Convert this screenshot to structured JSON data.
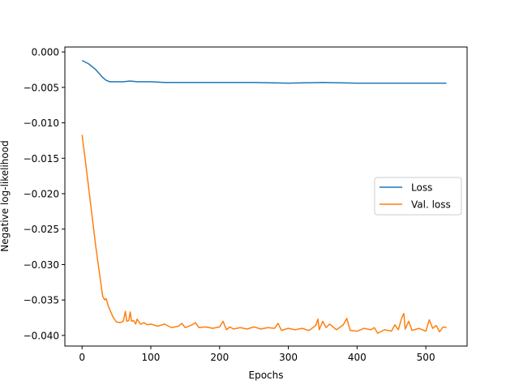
{
  "chart_data": {
    "type": "line",
    "xlabel": "Epochs",
    "ylabel": "Negative log-likelihood",
    "xlim": [
      -25,
      560
    ],
    "ylim": [
      -0.0415,
      0.0007
    ],
    "xticks": [
      0,
      100,
      200,
      300,
      400,
      500
    ],
    "xtick_labels": [
      "0",
      "100",
      "200",
      "300",
      "400",
      "500"
    ],
    "yticks": [
      0.0,
      -0.005,
      -0.01,
      -0.015,
      -0.02,
      -0.025,
      -0.03,
      -0.035,
      -0.04
    ],
    "ytick_labels": [
      "0.000",
      "−0.005",
      "−0.010",
      "−0.015",
      "−0.020",
      "−0.025",
      "−0.030",
      "−0.035",
      "−0.040"
    ],
    "grid": false,
    "legend_position": "center-right",
    "series": [
      {
        "name": "Loss",
        "color": "#1f77b4",
        "x": [
          0,
          10,
          20,
          30,
          35,
          40,
          50,
          60,
          70,
          80,
          100,
          120,
          150,
          180,
          200,
          250,
          300,
          350,
          400,
          450,
          500,
          530
        ],
        "y": [
          -0.0012,
          -0.0017,
          -0.0025,
          -0.0036,
          -0.004,
          -0.0042,
          -0.0042,
          -0.0042,
          -0.0041,
          -0.0042,
          -0.0042,
          -0.0043,
          -0.0043,
          -0.0043,
          -0.0043,
          -0.0043,
          -0.0044,
          -0.0043,
          -0.0044,
          -0.0044,
          -0.0044,
          -0.0044
        ]
      },
      {
        "name": "Val. loss",
        "color": "#ff7f0e",
        "x": [
          0,
          5,
          10,
          15,
          20,
          25,
          30,
          33,
          35,
          38,
          40,
          45,
          50,
          55,
          60,
          63,
          65,
          68,
          70,
          72,
          75,
          78,
          80,
          85,
          90,
          95,
          100,
          110,
          120,
          130,
          140,
          145,
          150,
          160,
          165,
          170,
          180,
          190,
          200,
          205,
          210,
          215,
          220,
          230,
          240,
          250,
          260,
          270,
          280,
          285,
          290,
          300,
          310,
          320,
          330,
          340,
          343,
          345,
          350,
          355,
          360,
          370,
          380,
          385,
          390,
          400,
          410,
          420,
          425,
          430,
          440,
          450,
          455,
          460,
          465,
          468,
          470,
          475,
          480,
          490,
          500,
          505,
          510,
          515,
          520,
          525,
          530
        ],
        "y": [
          -0.0117,
          -0.0155,
          -0.0195,
          -0.0235,
          -0.0275,
          -0.031,
          -0.0345,
          -0.035,
          -0.0348,
          -0.0358,
          -0.0363,
          -0.0374,
          -0.0381,
          -0.0382,
          -0.038,
          -0.0366,
          -0.038,
          -0.0379,
          -0.0367,
          -0.038,
          -0.0379,
          -0.0384,
          -0.0377,
          -0.0384,
          -0.0382,
          -0.0385,
          -0.0384,
          -0.0387,
          -0.0384,
          -0.0389,
          -0.0387,
          -0.0383,
          -0.0389,
          -0.0385,
          -0.0382,
          -0.0389,
          -0.0388,
          -0.039,
          -0.0388,
          -0.038,
          -0.0392,
          -0.0388,
          -0.0391,
          -0.0389,
          -0.0391,
          -0.0388,
          -0.0391,
          -0.0389,
          -0.039,
          -0.0383,
          -0.0393,
          -0.039,
          -0.0392,
          -0.039,
          -0.0393,
          -0.0386,
          -0.0377,
          -0.0392,
          -0.038,
          -0.0389,
          -0.0384,
          -0.0392,
          -0.0385,
          -0.0376,
          -0.0393,
          -0.0394,
          -0.039,
          -0.0392,
          -0.0389,
          -0.0397,
          -0.0392,
          -0.0394,
          -0.0385,
          -0.0392,
          -0.0375,
          -0.0369,
          -0.0391,
          -0.038,
          -0.0393,
          -0.039,
          -0.0394,
          -0.0378,
          -0.039,
          -0.0386,
          -0.0395,
          -0.0388,
          -0.0389
        ]
      }
    ]
  }
}
